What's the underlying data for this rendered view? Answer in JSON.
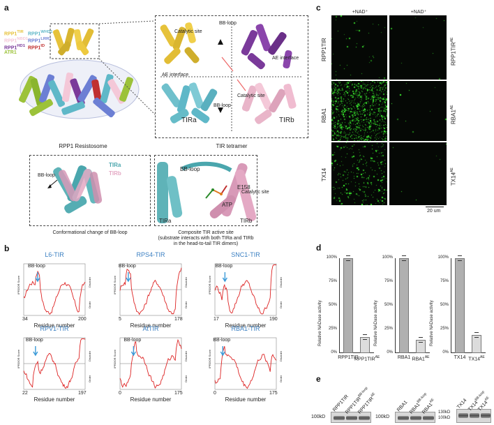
{
  "panel_labels": [
    "a",
    "b",
    "c",
    "d",
    "e"
  ],
  "panel_a": {
    "legend": [
      {
        "text": "RPP1",
        "sup": "TIR",
        "color": "#e6c23a"
      },
      {
        "text": "RPP1",
        "sup": "WHD1",
        "color": "#5fb8c8"
      },
      {
        "text": "RPP1",
        "sup": "NBD1",
        "color": "#f4c8d8"
      },
      {
        "text": "RPP1",
        "sup": "LRR1",
        "color": "#6c7fd4"
      },
      {
        "text": "RPP1",
        "sup": "HD1",
        "color": "#7a3a9a"
      },
      {
        "text": "RPP1",
        "sup": "ID",
        "color": "#c03030"
      },
      {
        "text": "ATR1",
        "sup": "",
        "color": "#9cc23a"
      }
    ],
    "resistosome_caption": "RPP1 Resistosome",
    "tetramer_caption": "TIR tetramer",
    "tetramer_labels": {
      "catalytic_site_top": "Catalytic site",
      "bb_loop_top": "BB-loop",
      "ae_interface_right": "AE interface",
      "ae_interface_left": "AE interface",
      "catalytic_site_bottom": "Catalytic site",
      "bb_loop_bottom": "BB-loop",
      "tira": "TIRa",
      "tirb": "TIRb"
    },
    "conformational": {
      "bb_loop": "BB-loop",
      "tira": "TIRa",
      "tirb": "TIRb",
      "caption": "Conformational change of BB-loop"
    },
    "composite": {
      "bb_loop": "BB-loop",
      "e158": "E158",
      "catalytic_site": "Catalytic site",
      "atp": "ATP",
      "tira": "TIRa",
      "tirb": "TIRb",
      "caption_lines": [
        "Composite TIR active site",
        "(substrate interacts with both TIRa and TIRb",
        "in the head-to-tail TIR dimers)"
      ]
    }
  },
  "panel_b": {
    "xlabel": "Residue number",
    "annotation": "BB-loop",
    "ylabel": "IPRDOR Score",
    "order_label": "Order",
    "disorder_label": "Disorder",
    "threshold": 0.5,
    "plots": [
      {
        "title": "L6-TIR",
        "xmin": "34",
        "xmax": "200"
      },
      {
        "title": "RPS4-TIR",
        "xmin": "5",
        "xmax": "178"
      },
      {
        "title": "SNC1-TIR",
        "xmin": "17",
        "xmax": "190"
      },
      {
        "title": "RPV1-TIR",
        "xmin": "22",
        "xmax": "197"
      },
      {
        "title": "AtTIR",
        "xmin": "0",
        "xmax": "175"
      },
      {
        "title": "RBA1-TIR",
        "xmin": "0",
        "xmax": "175"
      }
    ]
  },
  "panel_c": {
    "column_headers": [
      "+NAD⁺",
      "+NAD⁺"
    ],
    "rows_left": [
      "RPP1TIR",
      "RBA1",
      "TX14"
    ],
    "rows_right": [
      {
        "text": "RPP1TIR",
        "sup": "AE"
      },
      {
        "text": "RBA1",
        "sup": "AE"
      },
      {
        "text": "TX14",
        "sup": "AE"
      }
    ],
    "scale_bar": "20 um"
  },
  "panel_d": {
    "ylabel": "Relative NADase activity",
    "yticks": [
      "0%",
      "25%",
      "50%",
      "75%",
      "100%"
    ],
    "chart_data": [
      {
        "type": "bar",
        "ylabel": "Relative NADase activity",
        "ylim": [
          0,
          100
        ],
        "categories": [
          "RPP1TIR",
          "RPP1TIRAE"
        ],
        "values": [
          100,
          17
        ]
      },
      {
        "type": "bar",
        "ylabel": "Relative NADase activity",
        "ylim": [
          0,
          100
        ],
        "categories": [
          "RBA1",
          "RBA1AE"
        ],
        "values": [
          100,
          14
        ]
      },
      {
        "type": "bar",
        "ylabel": "Relative NADase activity",
        "ylim": [
          0,
          100
        ],
        "categories": [
          "TX14",
          "TX14AE"
        ],
        "values": [
          100,
          19
        ]
      }
    ],
    "xlabels": [
      [
        {
          "text": "RPP1TIR",
          "sup": ""
        },
        {
          "text": "RPP1TIR",
          "sup": "AE"
        }
      ],
      [
        {
          "text": "RBA1",
          "sup": ""
        },
        {
          "text": "RBA1",
          "sup": "AE"
        }
      ],
      [
        {
          "text": "TX14",
          "sup": ""
        },
        {
          "text": "TX14",
          "sup": "AE"
        }
      ]
    ]
  },
  "panel_e": {
    "groups": [
      {
        "marker": "100kD",
        "lanes": [
          {
            "text": "RPP1TIR",
            "sup": ""
          },
          {
            "text": "RPP1TIR",
            "sup": "BB-loop"
          },
          {
            "text": "RPP1TIR",
            "sup": "AE"
          }
        ]
      },
      {
        "marker": "100kD",
        "lanes": [
          {
            "text": "RBA1",
            "sup": ""
          },
          {
            "text": "RBA1",
            "sup": "BB-loop"
          },
          {
            "text": "RBA1",
            "sup": "AE"
          }
        ]
      },
      {
        "markers": [
          "130kD",
          "100kD"
        ],
        "lanes": [
          {
            "text": "TX14",
            "sup": ""
          },
          {
            "text": "TX14",
            "sup": "BB-loop"
          },
          {
            "text": "TX14",
            "sup": "AE"
          }
        ]
      }
    ]
  }
}
